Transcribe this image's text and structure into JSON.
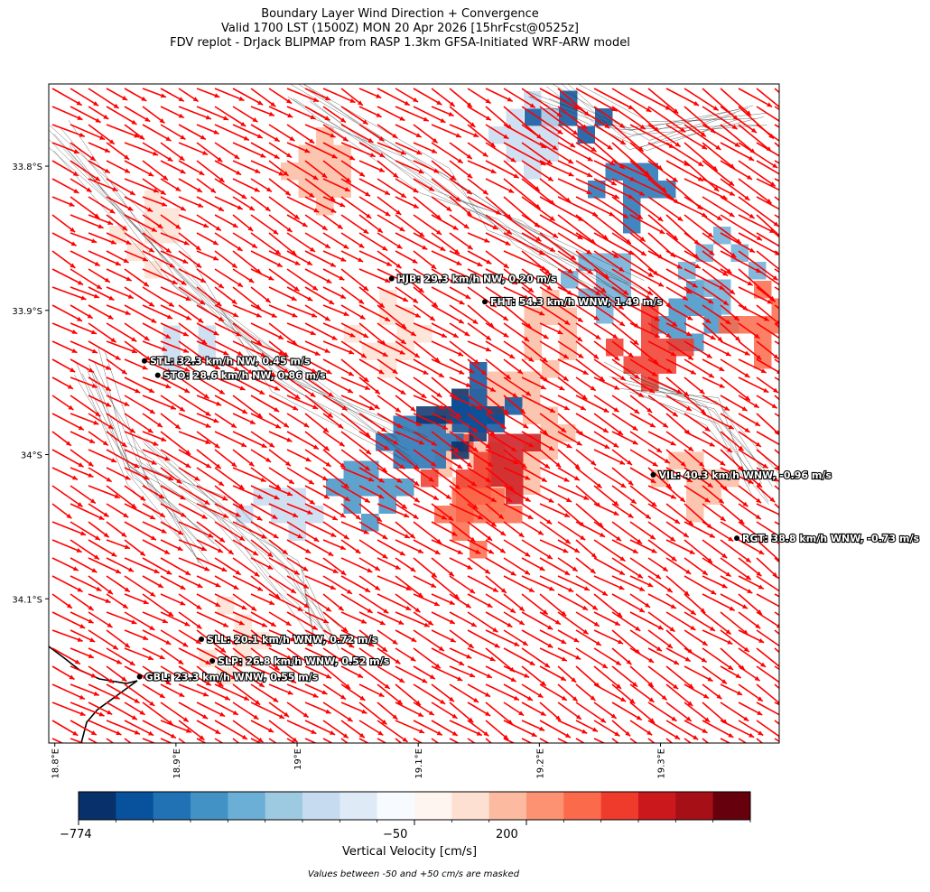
{
  "titles": {
    "line1": "Boundary Layer Wind Direction + Convergence",
    "line2": "Valid 1700 LST (1500Z) MON 20 Apr 2026 [15hrFcst@0525z]",
    "line3": "FDV replot - DrJack BLIPMAP from RASP 1.3km GFSA-Initiated WRF-ARW model"
  },
  "axes": {
    "lon_ticks": [
      "18.8°E",
      "18.9°E",
      "19°E",
      "19.1°E",
      "19.2°E",
      "19.3°E"
    ],
    "lat_ticks": [
      "33.8°S",
      "33.9°S",
      "34°S",
      "34.1°S"
    ]
  },
  "map_extent": {
    "lon_min": 18.795,
    "lon_max": 19.398,
    "lat_min": -34.2,
    "lat_max": -33.743
  },
  "stations": [
    {
      "code": "HJB",
      "lon": 19.078,
      "lat": -33.878,
      "label": "HJB: 29.3 km/h NW, 0.20 m/s"
    },
    {
      "code": "FHT",
      "lon": 19.155,
      "lat": -33.894,
      "label": "FHT: 54.3 km/h WNW, 1.49 m/s"
    },
    {
      "code": "STL",
      "lon": 18.874,
      "lat": -33.935,
      "label": "STL: 32.3 km/h NW, 0.45 m/s"
    },
    {
      "code": "STO",
      "lon": 18.885,
      "lat": -33.945,
      "label": "STO: 28.6 km/h NW, 0.86 m/s"
    },
    {
      "code": "VIL",
      "lon": 19.294,
      "lat": -34.014,
      "label": "VIL: 40.3 km/h WNW, -0.96 m/s"
    },
    {
      "code": "RGT",
      "lon": 19.363,
      "lat": -34.058,
      "label": "RGT: 38.8 km/h WNW, -0.73 m/s"
    },
    {
      "code": "SLL",
      "lon": 18.921,
      "lat": -34.128,
      "label": "SLL: 20.1 km/h WNW, 0.72 m/s"
    },
    {
      "code": "SLP",
      "lon": 18.93,
      "lat": -34.143,
      "label": "SLP: 26.8 km/h WNW, 0.52 m/s"
    },
    {
      "code": "GBL",
      "lon": 18.87,
      "lat": -34.154,
      "label": "GBL: 23.3 km/h WNW, 0.55 m/s"
    }
  ],
  "colorbar": {
    "label": "Vertical Velocity [cm/s]",
    "tick_labels": [
      "−774",
      "−50",
      "200"
    ],
    "colors": [
      "#08306b",
      "#08519c",
      "#2171b5",
      "#4292c6",
      "#6baed6",
      "#9ecae1",
      "#c6dbef",
      "#deebf7",
      "#f7fbff",
      "#fff5f0",
      "#fee0d2",
      "#fcbba1",
      "#fc9272",
      "#fb6a4a",
      "#ef3b2c",
      "#cb181d",
      "#a50f15",
      "#67000d"
    ]
  },
  "footnote": "Values between -50 and +50 cm/s are masked",
  "colors": {
    "wind_vectors": "#ff0000",
    "terrain_contours": "#333333",
    "coastline": "#000000",
    "station_dot": "#000000"
  }
}
